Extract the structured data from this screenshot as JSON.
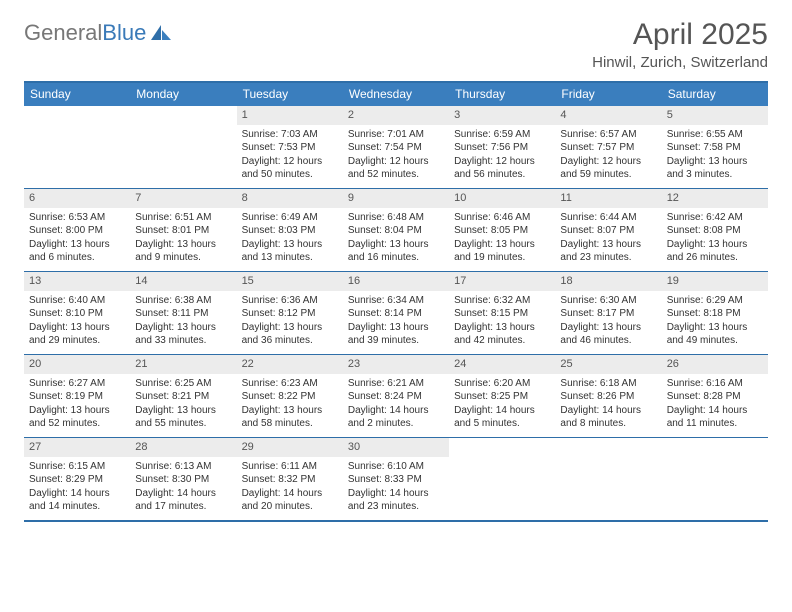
{
  "brand": {
    "part1": "General",
    "part2": "Blue"
  },
  "title": "April 2025",
  "location": "Hinwil, Zurich, Switzerland",
  "colors": {
    "header_bar": "#3a7ebe",
    "rule": "#2e6ea8",
    "daynum_bg": "#ececec",
    "text": "#333333",
    "title_text": "#555555"
  },
  "dow": [
    "Sunday",
    "Monday",
    "Tuesday",
    "Wednesday",
    "Thursday",
    "Friday",
    "Saturday"
  ],
  "weeks": [
    [
      null,
      null,
      {
        "n": "1",
        "sr": "Sunrise: 7:03 AM",
        "ss": "Sunset: 7:53 PM",
        "dl": "Daylight: 12 hours and 50 minutes."
      },
      {
        "n": "2",
        "sr": "Sunrise: 7:01 AM",
        "ss": "Sunset: 7:54 PM",
        "dl": "Daylight: 12 hours and 52 minutes."
      },
      {
        "n": "3",
        "sr": "Sunrise: 6:59 AM",
        "ss": "Sunset: 7:56 PM",
        "dl": "Daylight: 12 hours and 56 minutes."
      },
      {
        "n": "4",
        "sr": "Sunrise: 6:57 AM",
        "ss": "Sunset: 7:57 PM",
        "dl": "Daylight: 12 hours and 59 minutes."
      },
      {
        "n": "5",
        "sr": "Sunrise: 6:55 AM",
        "ss": "Sunset: 7:58 PM",
        "dl": "Daylight: 13 hours and 3 minutes."
      }
    ],
    [
      {
        "n": "6",
        "sr": "Sunrise: 6:53 AM",
        "ss": "Sunset: 8:00 PM",
        "dl": "Daylight: 13 hours and 6 minutes."
      },
      {
        "n": "7",
        "sr": "Sunrise: 6:51 AM",
        "ss": "Sunset: 8:01 PM",
        "dl": "Daylight: 13 hours and 9 minutes."
      },
      {
        "n": "8",
        "sr": "Sunrise: 6:49 AM",
        "ss": "Sunset: 8:03 PM",
        "dl": "Daylight: 13 hours and 13 minutes."
      },
      {
        "n": "9",
        "sr": "Sunrise: 6:48 AM",
        "ss": "Sunset: 8:04 PM",
        "dl": "Daylight: 13 hours and 16 minutes."
      },
      {
        "n": "10",
        "sr": "Sunrise: 6:46 AM",
        "ss": "Sunset: 8:05 PM",
        "dl": "Daylight: 13 hours and 19 minutes."
      },
      {
        "n": "11",
        "sr": "Sunrise: 6:44 AM",
        "ss": "Sunset: 8:07 PM",
        "dl": "Daylight: 13 hours and 23 minutes."
      },
      {
        "n": "12",
        "sr": "Sunrise: 6:42 AM",
        "ss": "Sunset: 8:08 PM",
        "dl": "Daylight: 13 hours and 26 minutes."
      }
    ],
    [
      {
        "n": "13",
        "sr": "Sunrise: 6:40 AM",
        "ss": "Sunset: 8:10 PM",
        "dl": "Daylight: 13 hours and 29 minutes."
      },
      {
        "n": "14",
        "sr": "Sunrise: 6:38 AM",
        "ss": "Sunset: 8:11 PM",
        "dl": "Daylight: 13 hours and 33 minutes."
      },
      {
        "n": "15",
        "sr": "Sunrise: 6:36 AM",
        "ss": "Sunset: 8:12 PM",
        "dl": "Daylight: 13 hours and 36 minutes."
      },
      {
        "n": "16",
        "sr": "Sunrise: 6:34 AM",
        "ss": "Sunset: 8:14 PM",
        "dl": "Daylight: 13 hours and 39 minutes."
      },
      {
        "n": "17",
        "sr": "Sunrise: 6:32 AM",
        "ss": "Sunset: 8:15 PM",
        "dl": "Daylight: 13 hours and 42 minutes."
      },
      {
        "n": "18",
        "sr": "Sunrise: 6:30 AM",
        "ss": "Sunset: 8:17 PM",
        "dl": "Daylight: 13 hours and 46 minutes."
      },
      {
        "n": "19",
        "sr": "Sunrise: 6:29 AM",
        "ss": "Sunset: 8:18 PM",
        "dl": "Daylight: 13 hours and 49 minutes."
      }
    ],
    [
      {
        "n": "20",
        "sr": "Sunrise: 6:27 AM",
        "ss": "Sunset: 8:19 PM",
        "dl": "Daylight: 13 hours and 52 minutes."
      },
      {
        "n": "21",
        "sr": "Sunrise: 6:25 AM",
        "ss": "Sunset: 8:21 PM",
        "dl": "Daylight: 13 hours and 55 minutes."
      },
      {
        "n": "22",
        "sr": "Sunrise: 6:23 AM",
        "ss": "Sunset: 8:22 PM",
        "dl": "Daylight: 13 hours and 58 minutes."
      },
      {
        "n": "23",
        "sr": "Sunrise: 6:21 AM",
        "ss": "Sunset: 8:24 PM",
        "dl": "Daylight: 14 hours and 2 minutes."
      },
      {
        "n": "24",
        "sr": "Sunrise: 6:20 AM",
        "ss": "Sunset: 8:25 PM",
        "dl": "Daylight: 14 hours and 5 minutes."
      },
      {
        "n": "25",
        "sr": "Sunrise: 6:18 AM",
        "ss": "Sunset: 8:26 PM",
        "dl": "Daylight: 14 hours and 8 minutes."
      },
      {
        "n": "26",
        "sr": "Sunrise: 6:16 AM",
        "ss": "Sunset: 8:28 PM",
        "dl": "Daylight: 14 hours and 11 minutes."
      }
    ],
    [
      {
        "n": "27",
        "sr": "Sunrise: 6:15 AM",
        "ss": "Sunset: 8:29 PM",
        "dl": "Daylight: 14 hours and 14 minutes."
      },
      {
        "n": "28",
        "sr": "Sunrise: 6:13 AM",
        "ss": "Sunset: 8:30 PM",
        "dl": "Daylight: 14 hours and 17 minutes."
      },
      {
        "n": "29",
        "sr": "Sunrise: 6:11 AM",
        "ss": "Sunset: 8:32 PM",
        "dl": "Daylight: 14 hours and 20 minutes."
      },
      {
        "n": "30",
        "sr": "Sunrise: 6:10 AM",
        "ss": "Sunset: 8:33 PM",
        "dl": "Daylight: 14 hours and 23 minutes."
      },
      null,
      null,
      null
    ]
  ]
}
